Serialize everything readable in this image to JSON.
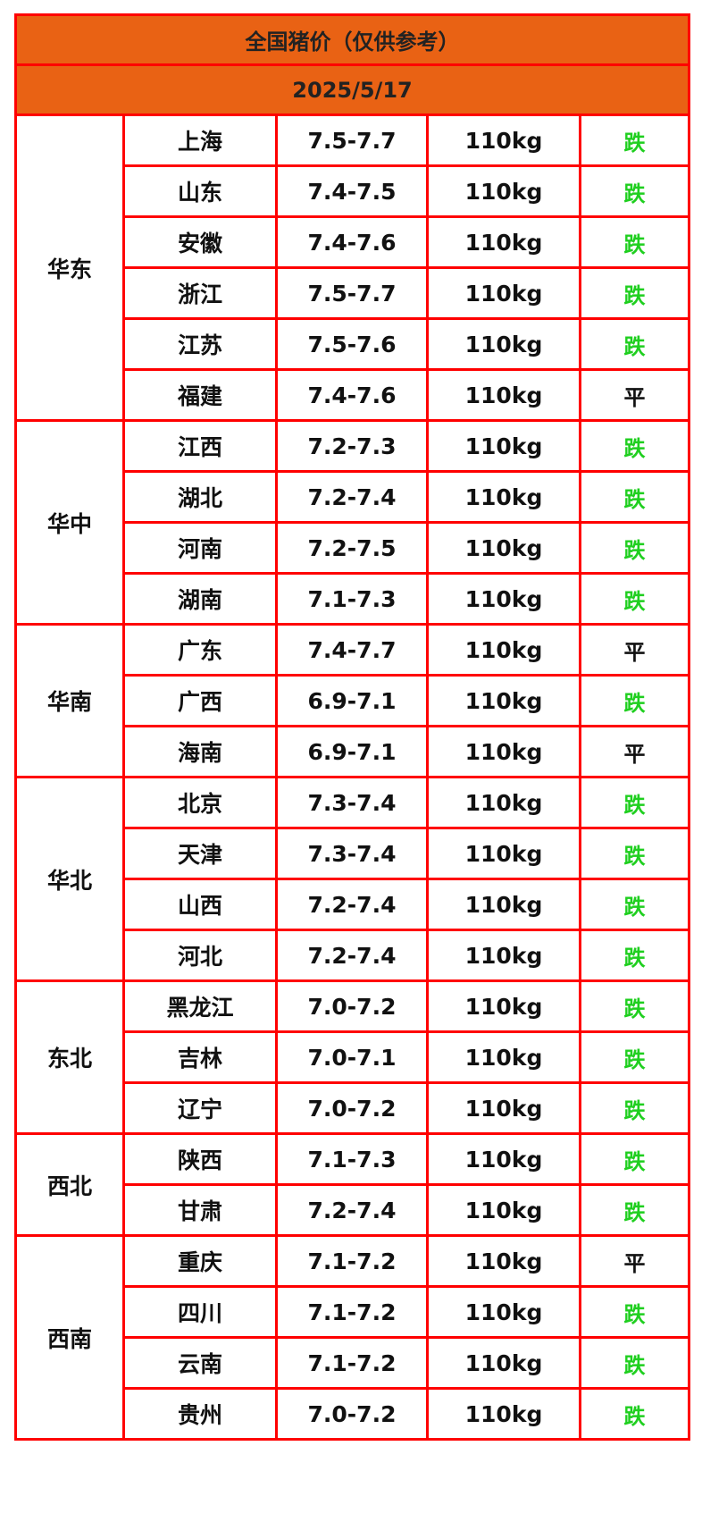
{
  "title": "全国猪价（仅供参考）",
  "date": "2025/5/17",
  "colors": {
    "header_bg": "#e96214",
    "border": "#ff0000",
    "down": "#1fcf1f",
    "flat": "#111111"
  },
  "regions": [
    {
      "name": "华东",
      "rows": [
        {
          "province": "上海",
          "price": "7.5-7.7",
          "weight": "110kg",
          "trend": "跌"
        },
        {
          "province": "山东",
          "price": "7.4-7.5",
          "weight": "110kg",
          "trend": "跌"
        },
        {
          "province": "安徽",
          "price": "7.4-7.6",
          "weight": "110kg",
          "trend": "跌"
        },
        {
          "province": "浙江",
          "price": "7.5-7.7",
          "weight": "110kg",
          "trend": "跌"
        },
        {
          "province": "江苏",
          "price": "7.5-7.6",
          "weight": "110kg",
          "trend": "跌"
        },
        {
          "province": "福建",
          "price": "7.4-7.6",
          "weight": "110kg",
          "trend": "平"
        }
      ]
    },
    {
      "name": "华中",
      "rows": [
        {
          "province": "江西",
          "price": "7.2-7.3",
          "weight": "110kg",
          "trend": "跌"
        },
        {
          "province": "湖北",
          "price": "7.2-7.4",
          "weight": "110kg",
          "trend": "跌"
        },
        {
          "province": "河南",
          "price": "7.2-7.5",
          "weight": "110kg",
          "trend": "跌"
        },
        {
          "province": "湖南",
          "price": "7.1-7.3",
          "weight": "110kg",
          "trend": "跌"
        }
      ]
    },
    {
      "name": "华南",
      "rows": [
        {
          "province": "广东",
          "price": "7.4-7.7",
          "weight": "110kg",
          "trend": "平"
        },
        {
          "province": "广西",
          "price": "6.9-7.1",
          "weight": "110kg",
          "trend": "跌"
        },
        {
          "province": "海南",
          "price": "6.9-7.1",
          "weight": "110kg",
          "trend": "平"
        }
      ]
    },
    {
      "name": "华北",
      "rows": [
        {
          "province": "北京",
          "price": "7.3-7.4",
          "weight": "110kg",
          "trend": "跌"
        },
        {
          "province": "天津",
          "price": "7.3-7.4",
          "weight": "110kg",
          "trend": "跌"
        },
        {
          "province": "山西",
          "price": "7.2-7.4",
          "weight": "110kg",
          "trend": "跌"
        },
        {
          "province": "河北",
          "price": "7.2-7.4",
          "weight": "110kg",
          "trend": "跌"
        }
      ]
    },
    {
      "name": "东北",
      "rows": [
        {
          "province": "黑龙江",
          "price": "7.0-7.2",
          "weight": "110kg",
          "trend": "跌"
        },
        {
          "province": "吉林",
          "price": "7.0-7.1",
          "weight": "110kg",
          "trend": "跌"
        },
        {
          "province": "辽宁",
          "price": "7.0-7.2",
          "weight": "110kg",
          "trend": "跌"
        }
      ]
    },
    {
      "name": "西北",
      "rows": [
        {
          "province": "陕西",
          "price": "7.1-7.3",
          "weight": "110kg",
          "trend": "跌"
        },
        {
          "province": "甘肃",
          "price": "7.2-7.4",
          "weight": "110kg",
          "trend": "跌"
        }
      ]
    },
    {
      "name": "西南",
      "rows": [
        {
          "province": "重庆",
          "price": "7.1-7.2",
          "weight": "110kg",
          "trend": "平"
        },
        {
          "province": "四川",
          "price": "7.1-7.2",
          "weight": "110kg",
          "trend": "跌"
        },
        {
          "province": "云南",
          "price": "7.1-7.2",
          "weight": "110kg",
          "trend": "跌"
        },
        {
          "province": "贵州",
          "price": "7.0-7.2",
          "weight": "110kg",
          "trend": "跌"
        }
      ]
    }
  ]
}
